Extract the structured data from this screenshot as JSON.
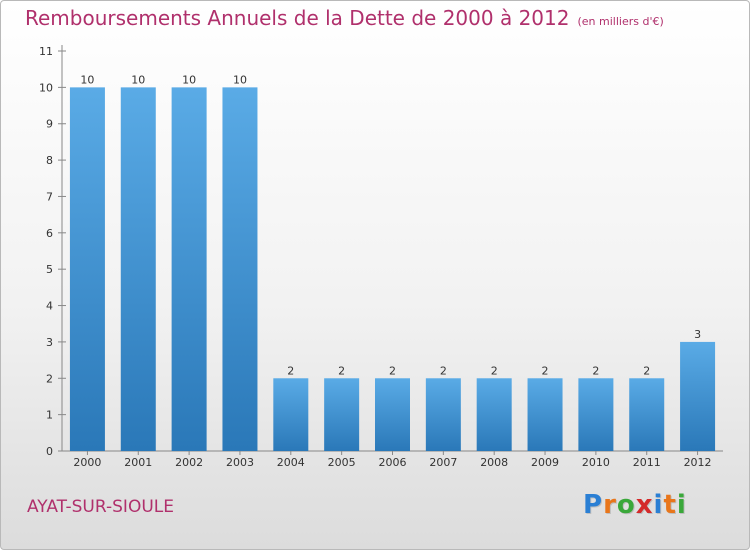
{
  "title": "Remboursements Annuels de la Dette de 2000 à 2012",
  "unit": "(en milliers d'€)",
  "commune": "AYAT-SUR-SIOULE",
  "logo": {
    "letters": [
      "P",
      "r",
      "o",
      "x",
      "i",
      "t",
      "i"
    ],
    "colors": [
      "#2a7fd4",
      "#e8761b",
      "#3aa83a",
      "#d42a2a",
      "#2a7fd4",
      "#e8761b",
      "#3aa83a"
    ]
  },
  "colors": {
    "bar_top": "#5aabe6",
    "bar_bottom": "#2a78b8",
    "title": "#b0306c"
  },
  "chart_data": {
    "type": "bar",
    "categories": [
      "2000",
      "2001",
      "2002",
      "2003",
      "2004",
      "2005",
      "2006",
      "2007",
      "2008",
      "2009",
      "2010",
      "2011",
      "2012"
    ],
    "values": [
      10,
      10,
      10,
      10,
      2,
      2,
      2,
      2,
      2,
      2,
      2,
      2,
      3
    ],
    "data_labels": [
      "10",
      "10",
      "10",
      "10",
      "2",
      "2",
      "2",
      "2",
      "2",
      "2",
      "2",
      "2",
      "3"
    ],
    "yticks": [
      0,
      1,
      2,
      3,
      4,
      5,
      6,
      7,
      8,
      9,
      10,
      11
    ],
    "ylim": [
      0,
      11
    ],
    "title": "Remboursements Annuels de la Dette de 2000 à 2012",
    "xlabel": "",
    "ylabel": "",
    "grid": false
  }
}
